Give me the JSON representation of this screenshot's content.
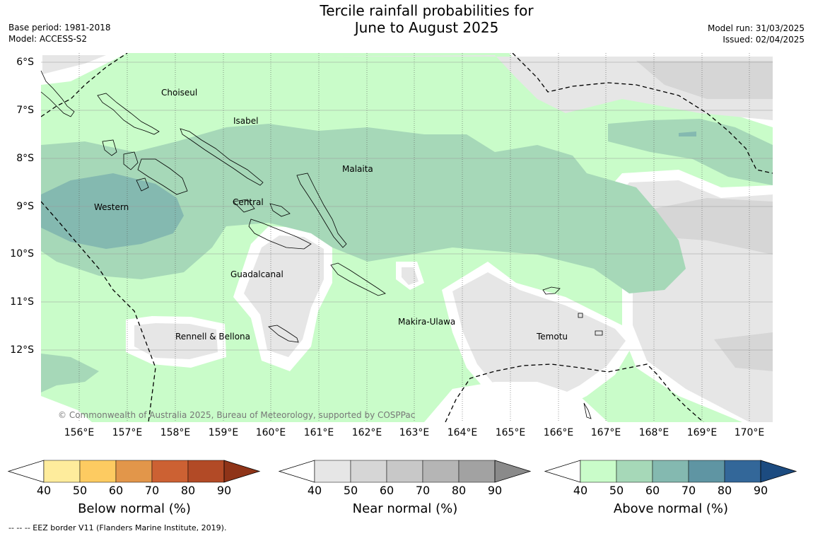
{
  "title_line1": "Tercile rainfall probabilities for",
  "title_line2": "June to August 2025",
  "base_period": "Base period: 1981-2018",
  "model": "Model: ACCESS-S2",
  "model_run": "Model run: 31/03/2025",
  "issued": "Issued: 02/04/2025",
  "lat_labels": [
    "6°S",
    "7°S",
    "8°S",
    "9°S",
    "10°S",
    "11°S",
    "12°S"
  ],
  "lon_labels": [
    "156°E",
    "157°E",
    "158°E",
    "159°E",
    "160°E",
    "161°E",
    "162°E",
    "163°E",
    "164°E",
    "165°E",
    "166°E",
    "167°E",
    "168°E",
    "169°E",
    "170°E"
  ],
  "regions": {
    "choiseul": "Choiseul",
    "isabel": "Isabel",
    "malaita": "Malaita",
    "western": "Western",
    "central": "Central",
    "guadalcanal": "Guadalcanal",
    "makira": "Makira-Ulawa",
    "rennell": "Rennell & Bellona",
    "temotu": "Temotu"
  },
  "copyright": "© Commonwealth of Australia 2025, Bureau of Meteorology, supported by COSPPac",
  "colorbars": {
    "ticks": [
      "40",
      "50",
      "60",
      "70",
      "80",
      "90"
    ],
    "below": {
      "label": "Below normal (%)",
      "colors": [
        "#ffffff",
        "#feec9c",
        "#fdcb61",
        "#e2964a",
        "#cc6133",
        "#b24a26",
        "#8f3418"
      ]
    },
    "near": {
      "label": "Near normal (%)",
      "colors": [
        "#ffffff",
        "#e6e6e6",
        "#d6d6d6",
        "#c8c8c8",
        "#b5b5b5",
        "#a2a2a2",
        "#8a8a8a"
      ]
    },
    "above": {
      "label": "Above normal (%)",
      "colors": [
        "#ffffff",
        "#c9fcc9",
        "#a6d8b8",
        "#84b9b0",
        "#5f95a3",
        "#336799",
        "#1c4b80"
      ]
    }
  },
  "eez_note": "--  --  -- EEZ border V11 (Flanders Marine Institute, 2019)."
}
